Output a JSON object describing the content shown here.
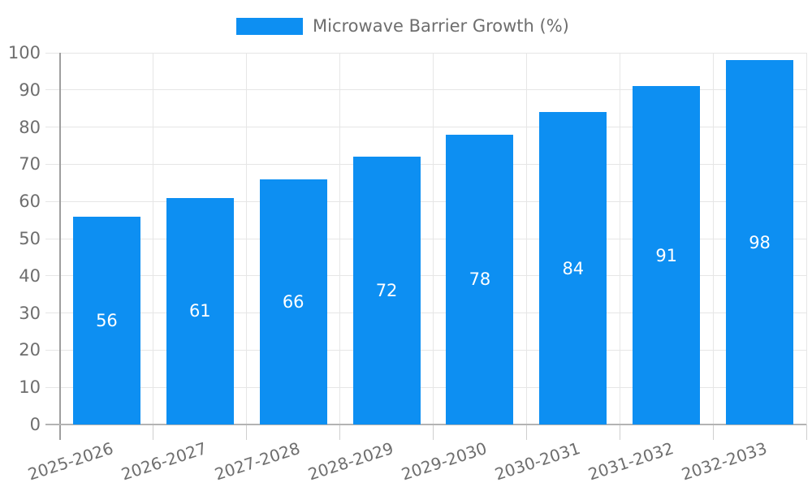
{
  "legend": {
    "label": "Microwave Barrier Growth (%)",
    "position": "top-center"
  },
  "chart_data": {
    "type": "bar",
    "title": "",
    "categories": [
      "2025-2026",
      "2026-2027",
      "2027-2028",
      "2028-2029",
      "2029-2030",
      "2030-2031",
      "2031-2032",
      "2032-2033"
    ],
    "series": [
      {
        "name": "Microwave Barrier Growth (%)",
        "values": [
          56,
          61,
          66,
          72,
          78,
          84,
          91,
          98
        ]
      }
    ],
    "bar_value_labels": [
      "56",
      "61",
      "66",
      "72",
      "78",
      "84",
      "91",
      "98"
    ],
    "xlabel": "",
    "ylabel": "",
    "ylim": [
      0,
      100
    ],
    "yticks": [
      0,
      10,
      20,
      30,
      40,
      50,
      60,
      70,
      80,
      90,
      100
    ],
    "grid": true,
    "legend_position": "top-center",
    "value_labels_inside_bars": true,
    "x_label_rotation_deg": -18,
    "colors": {
      "bar": "#0d8ff2",
      "bar_value_label": "#ffffff",
      "gridline": "#e6e6e6",
      "axis_line": "#9e9e9e",
      "baseline": "#b3b3b3",
      "tick": "#cfcfcf",
      "tick_label": "#6e6e6e",
      "legend_text": "#6e6e6e",
      "background": "#ffffff"
    }
  }
}
